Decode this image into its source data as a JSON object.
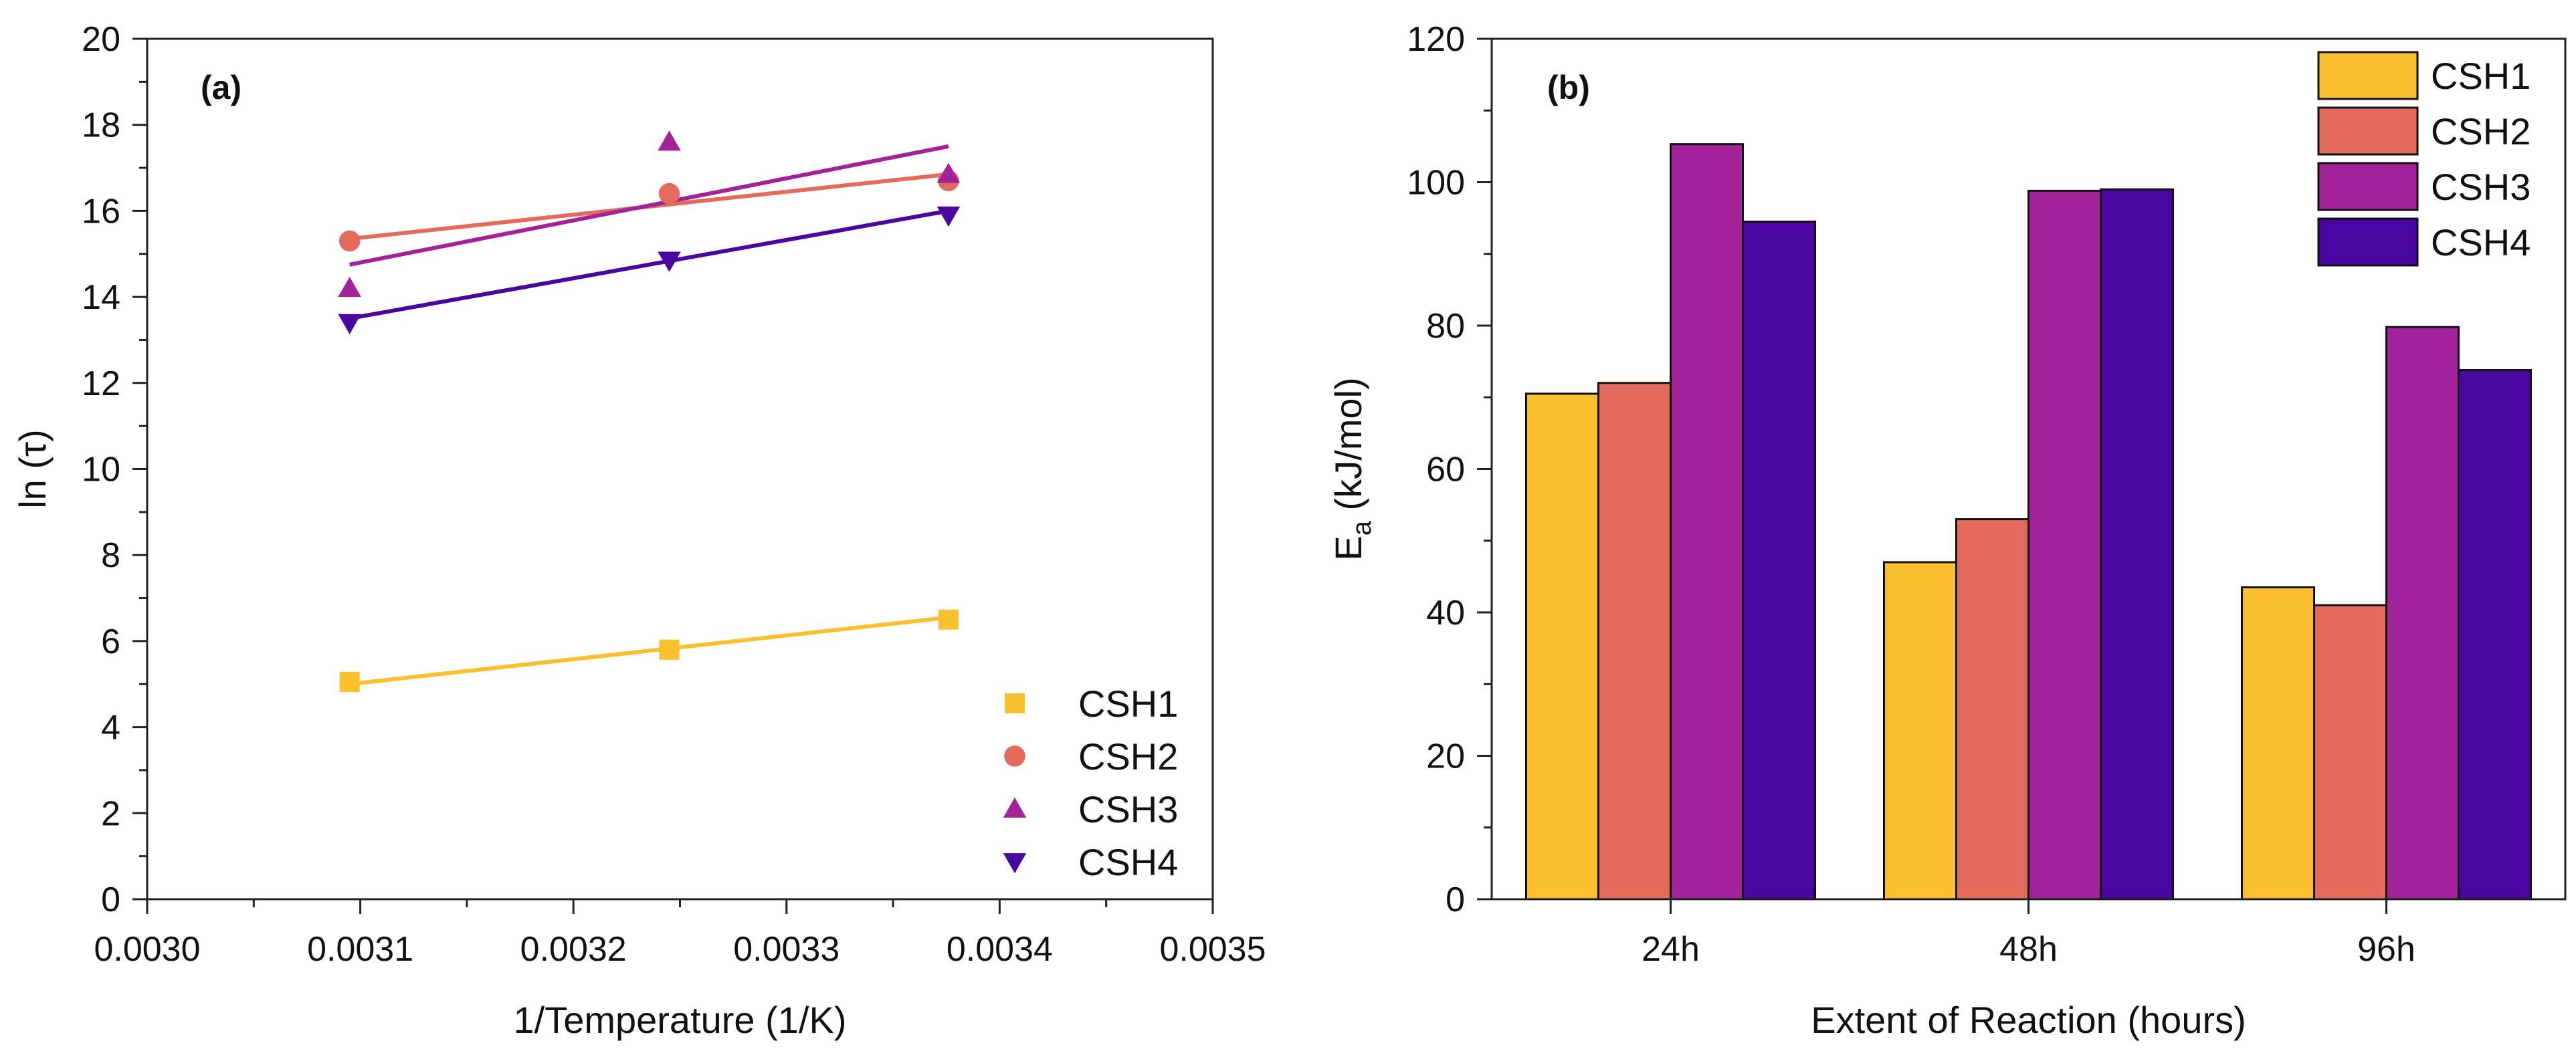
{
  "chart_data": [
    {
      "type": "scatter",
      "panel_label": "(a)",
      "xlabel": "1/Temperature (1/K)",
      "ylabel": "ln (τ)",
      "xlim": [
        0.003,
        0.0035
      ],
      "ylim": [
        0,
        20
      ],
      "x_ticks": [
        "0.0030",
        "0.0031",
        "0.0032",
        "0.0033",
        "0.0034",
        "0.0035"
      ],
      "y_ticks": [
        "0",
        "2",
        "4",
        "6",
        "8",
        "10",
        "12",
        "14",
        "16",
        "18",
        "20"
      ],
      "legend_position": "bottom-right",
      "series": [
        {
          "name": "CSH1",
          "marker": "square",
          "color": "#FBC02D",
          "x": [
            0.003095,
            0.003245,
            0.003376
          ],
          "y": [
            5.05,
            5.8,
            6.5
          ],
          "fit": {
            "x": [
              0.003095,
              0.003376
            ],
            "y": [
              5.0,
              6.55
            ]
          }
        },
        {
          "name": "CSH2",
          "marker": "circle",
          "color": "#E46A5C",
          "x": [
            0.003095,
            0.003245,
            0.003376
          ],
          "y": [
            15.3,
            16.4,
            16.7
          ],
          "fit": {
            "x": [
              0.003095,
              0.003376
            ],
            "y": [
              15.35,
              16.85
            ]
          }
        },
        {
          "name": "CSH3",
          "marker": "triangle-up",
          "color": "#A3229A",
          "x": [
            0.003095,
            0.003245,
            0.003376
          ],
          "y": [
            14.2,
            17.6,
            16.85
          ],
          "fit": {
            "x": [
              0.003095,
              0.003376
            ],
            "y": [
              14.75,
              17.5
            ]
          }
        },
        {
          "name": "CSH4",
          "marker": "triangle-down",
          "color": "#4A06A0",
          "x": [
            0.003095,
            0.003245,
            0.003376
          ],
          "y": [
            13.4,
            14.85,
            15.9
          ],
          "fit": {
            "x": [
              0.003095,
              0.003376
            ],
            "y": [
              13.5,
              16.0
            ]
          }
        }
      ]
    },
    {
      "type": "bar",
      "panel_label": "(b)",
      "xlabel": "Extent of Reaction (hours)",
      "ylabel": "E",
      "ylabel_subscript": "a",
      "ylabel_unit": " (kJ/mol)",
      "ylim": [
        0,
        120
      ],
      "y_ticks": [
        "0",
        "20",
        "40",
        "60",
        "80",
        "100",
        "120"
      ],
      "categories": [
        "24h",
        "48h",
        "96h"
      ],
      "legend_position": "top-right",
      "series": [
        {
          "name": "CSH1",
          "color": "#FBC02D",
          "values": [
            70.5,
            47.0,
            43.5
          ]
        },
        {
          "name": "CSH2",
          "color": "#E46A5C",
          "values": [
            72.0,
            53.0,
            41.0
          ]
        },
        {
          "name": "CSH3",
          "color": "#A3229A",
          "values": [
            105.3,
            98.8,
            79.8
          ]
        },
        {
          "name": "CSH4",
          "color": "#4A06A0",
          "values": [
            94.5,
            99.0,
            73.8
          ]
        }
      ]
    }
  ]
}
